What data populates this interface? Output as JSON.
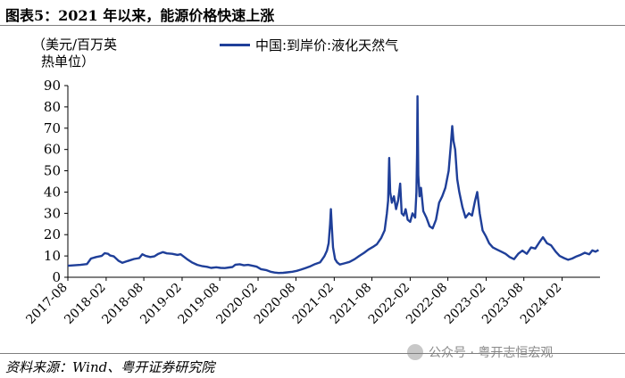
{
  "figure": {
    "title": "图表5：2021 年以来，能源价格快速上涨",
    "source": "资料来源：Wind、粤开证券研究院",
    "watermark": "公众号 · 粤开志恒宏观",
    "watermark_icon": "wechat-icon"
  },
  "chart_data": {
    "type": "line",
    "ylabel": [
      "（美元/百万英",
      "热单位）"
    ],
    "ylim": [
      0,
      90
    ],
    "yticks": [
      0,
      10,
      20,
      30,
      40,
      50,
      60,
      70,
      80,
      90
    ],
    "xlim": [
      "2017-08",
      "2024-08"
    ],
    "xticks": [
      "2017-08",
      "2018-02",
      "2018-08",
      "2019-02",
      "2019-08",
      "2020-02",
      "2020-08",
      "2021-02",
      "2021-08",
      "2022-02",
      "2022-08",
      "2023-02",
      "2023-08",
      "2024-02"
    ],
    "grid": false,
    "legend_position": "top",
    "series": [
      {
        "name": "中国:到岸价:液化天然气",
        "color": "#1f3f99",
        "points": [
          [
            "2017-08-01",
            5.4
          ],
          [
            "2017-09-01",
            5.6
          ],
          [
            "2017-10-01",
            5.8
          ],
          [
            "2017-11-01",
            6.2
          ],
          [
            "2017-11-20",
            8.8
          ],
          [
            "2017-12-15",
            9.5
          ],
          [
            "2018-01-10",
            10.0
          ],
          [
            "2018-01-25",
            11.3
          ],
          [
            "2018-02-10",
            11.0
          ],
          [
            "2018-02-20",
            10.2
          ],
          [
            "2018-03-10",
            9.8
          ],
          [
            "2018-04-01",
            7.8
          ],
          [
            "2018-04-20",
            6.8
          ],
          [
            "2018-05-15",
            7.6
          ],
          [
            "2018-06-15",
            8.6
          ],
          [
            "2018-07-10",
            9.0
          ],
          [
            "2018-07-25",
            10.8
          ],
          [
            "2018-08-10",
            10.0
          ],
          [
            "2018-09-01",
            9.5
          ],
          [
            "2018-09-20",
            9.8
          ],
          [
            "2018-10-10",
            11.0
          ],
          [
            "2018-11-01",
            11.8
          ],
          [
            "2018-11-20",
            11.2
          ],
          [
            "2018-12-15",
            11.0
          ],
          [
            "2019-01-10",
            10.5
          ],
          [
            "2019-01-25",
            10.8
          ],
          [
            "2019-02-10",
            9.6
          ],
          [
            "2019-03-01",
            8.2
          ],
          [
            "2019-03-20",
            7.0
          ],
          [
            "2019-04-15",
            5.8
          ],
          [
            "2019-05-10",
            5.2
          ],
          [
            "2019-06-01",
            4.9
          ],
          [
            "2019-06-20",
            4.4
          ],
          [
            "2019-07-15",
            4.7
          ],
          [
            "2019-08-05",
            4.4
          ],
          [
            "2019-08-25",
            4.3
          ],
          [
            "2019-09-15",
            4.6
          ],
          [
            "2019-10-01",
            4.8
          ],
          [
            "2019-10-15",
            5.9
          ],
          [
            "2019-11-05",
            6.1
          ],
          [
            "2019-11-25",
            5.6
          ],
          [
            "2019-12-15",
            5.8
          ],
          [
            "2020-01-10",
            5.3
          ],
          [
            "2020-01-25",
            5.0
          ],
          [
            "2020-02-15",
            3.8
          ],
          [
            "2020-03-10",
            3.4
          ],
          [
            "2020-04-01",
            2.6
          ],
          [
            "2020-04-20",
            2.2
          ],
          [
            "2020-05-10",
            2.0
          ],
          [
            "2020-06-01",
            2.1
          ],
          [
            "2020-06-20",
            2.3
          ],
          [
            "2020-07-15",
            2.6
          ],
          [
            "2020-08-05",
            3.0
          ],
          [
            "2020-08-25",
            3.6
          ],
          [
            "2020-09-15",
            4.3
          ],
          [
            "2020-10-10",
            5.2
          ],
          [
            "2020-11-01",
            6.2
          ],
          [
            "2020-11-25",
            7.0
          ],
          [
            "2020-12-15",
            9.8
          ],
          [
            "2020-12-28",
            12.5
          ],
          [
            "2021-01-05",
            16.0
          ],
          [
            "2021-01-12",
            25.0
          ],
          [
            "2021-01-16",
            32.0
          ],
          [
            "2021-01-20",
            24.0
          ],
          [
            "2021-01-26",
            14.0
          ],
          [
            "2021-02-05",
            8.5
          ],
          [
            "2021-02-15",
            7.0
          ],
          [
            "2021-02-28",
            6.0
          ],
          [
            "2021-03-20",
            6.5
          ],
          [
            "2021-04-15",
            7.2
          ],
          [
            "2021-05-10",
            8.5
          ],
          [
            "2021-06-01",
            10.0
          ],
          [
            "2021-06-25",
            11.5
          ],
          [
            "2021-07-15",
            13.0
          ],
          [
            "2021-08-05",
            14.2
          ],
          [
            "2021-08-25",
            15.5
          ],
          [
            "2021-09-15",
            18.5
          ],
          [
            "2021-10-01",
            22.0
          ],
          [
            "2021-10-12",
            30.0
          ],
          [
            "2021-10-18",
            36.0
          ],
          [
            "2021-10-23",
            56.0
          ],
          [
            "2021-10-28",
            40.0
          ],
          [
            "2021-11-05",
            35.0
          ],
          [
            "2021-11-15",
            38.0
          ],
          [
            "2021-11-25",
            32.0
          ],
          [
            "2021-12-05",
            36.0
          ],
          [
            "2021-12-15",
            44.0
          ],
          [
            "2021-12-22",
            30.0
          ],
          [
            "2022-01-01",
            29.0
          ],
          [
            "2022-01-10",
            32.0
          ],
          [
            "2022-01-20",
            27.0
          ],
          [
            "2022-02-01",
            26.0
          ],
          [
            "2022-02-12",
            30.0
          ],
          [
            "2022-02-25",
            28.0
          ],
          [
            "2022-03-03",
            40.0
          ],
          [
            "2022-03-06",
            58.0
          ],
          [
            "2022-03-08",
            85.0
          ],
          [
            "2022-03-12",
            48.0
          ],
          [
            "2022-03-18",
            38.0
          ],
          [
            "2022-03-25",
            42.0
          ],
          [
            "2022-04-05",
            31.0
          ],
          [
            "2022-04-20",
            28.0
          ],
          [
            "2022-05-05",
            24.0
          ],
          [
            "2022-05-20",
            23.0
          ],
          [
            "2022-06-05",
            27.0
          ],
          [
            "2022-06-20",
            35.0
          ],
          [
            "2022-07-05",
            38.0
          ],
          [
            "2022-07-20",
            42.0
          ],
          [
            "2022-08-05",
            50.0
          ],
          [
            "2022-08-15",
            62.0
          ],
          [
            "2022-08-22",
            71.0
          ],
          [
            "2022-08-28",
            64.0
          ],
          [
            "2022-09-05",
            60.0
          ],
          [
            "2022-09-15",
            46.0
          ],
          [
            "2022-09-25",
            40.0
          ],
          [
            "2022-10-10",
            33.0
          ],
          [
            "2022-10-25",
            28.0
          ],
          [
            "2022-11-10",
            30.0
          ],
          [
            "2022-11-25",
            29.0
          ],
          [
            "2022-12-10",
            36.0
          ],
          [
            "2022-12-20",
            40.0
          ],
          [
            "2023-01-01",
            30.0
          ],
          [
            "2023-01-15",
            22.0
          ],
          [
            "2023-02-01",
            19.0
          ],
          [
            "2023-02-15",
            16.0
          ],
          [
            "2023-03-05",
            14.0
          ],
          [
            "2023-03-25",
            13.0
          ],
          [
            "2023-04-15",
            12.0
          ],
          [
            "2023-05-05",
            11.0
          ],
          [
            "2023-05-25",
            9.5
          ],
          [
            "2023-06-15",
            8.5
          ],
          [
            "2023-07-05",
            11.0
          ],
          [
            "2023-07-25",
            12.5
          ],
          [
            "2023-08-15",
            11.0
          ],
          [
            "2023-09-05",
            14.0
          ],
          [
            "2023-09-25",
            13.5
          ],
          [
            "2023-10-15",
            16.5
          ],
          [
            "2023-11-01",
            18.8
          ],
          [
            "2023-11-20",
            16.0
          ],
          [
            "2023-12-10",
            15.0
          ],
          [
            "2024-01-01",
            12.0
          ],
          [
            "2024-01-20",
            10.0
          ],
          [
            "2024-02-10",
            9.0
          ],
          [
            "2024-03-01",
            8.2
          ],
          [
            "2024-03-20",
            8.8
          ],
          [
            "2024-04-10",
            9.8
          ],
          [
            "2024-05-01",
            10.6
          ],
          [
            "2024-05-20",
            11.5
          ],
          [
            "2024-06-10",
            10.8
          ],
          [
            "2024-06-25",
            12.6
          ],
          [
            "2024-07-10",
            12.0
          ],
          [
            "2024-07-25",
            12.8
          ]
        ]
      }
    ]
  }
}
